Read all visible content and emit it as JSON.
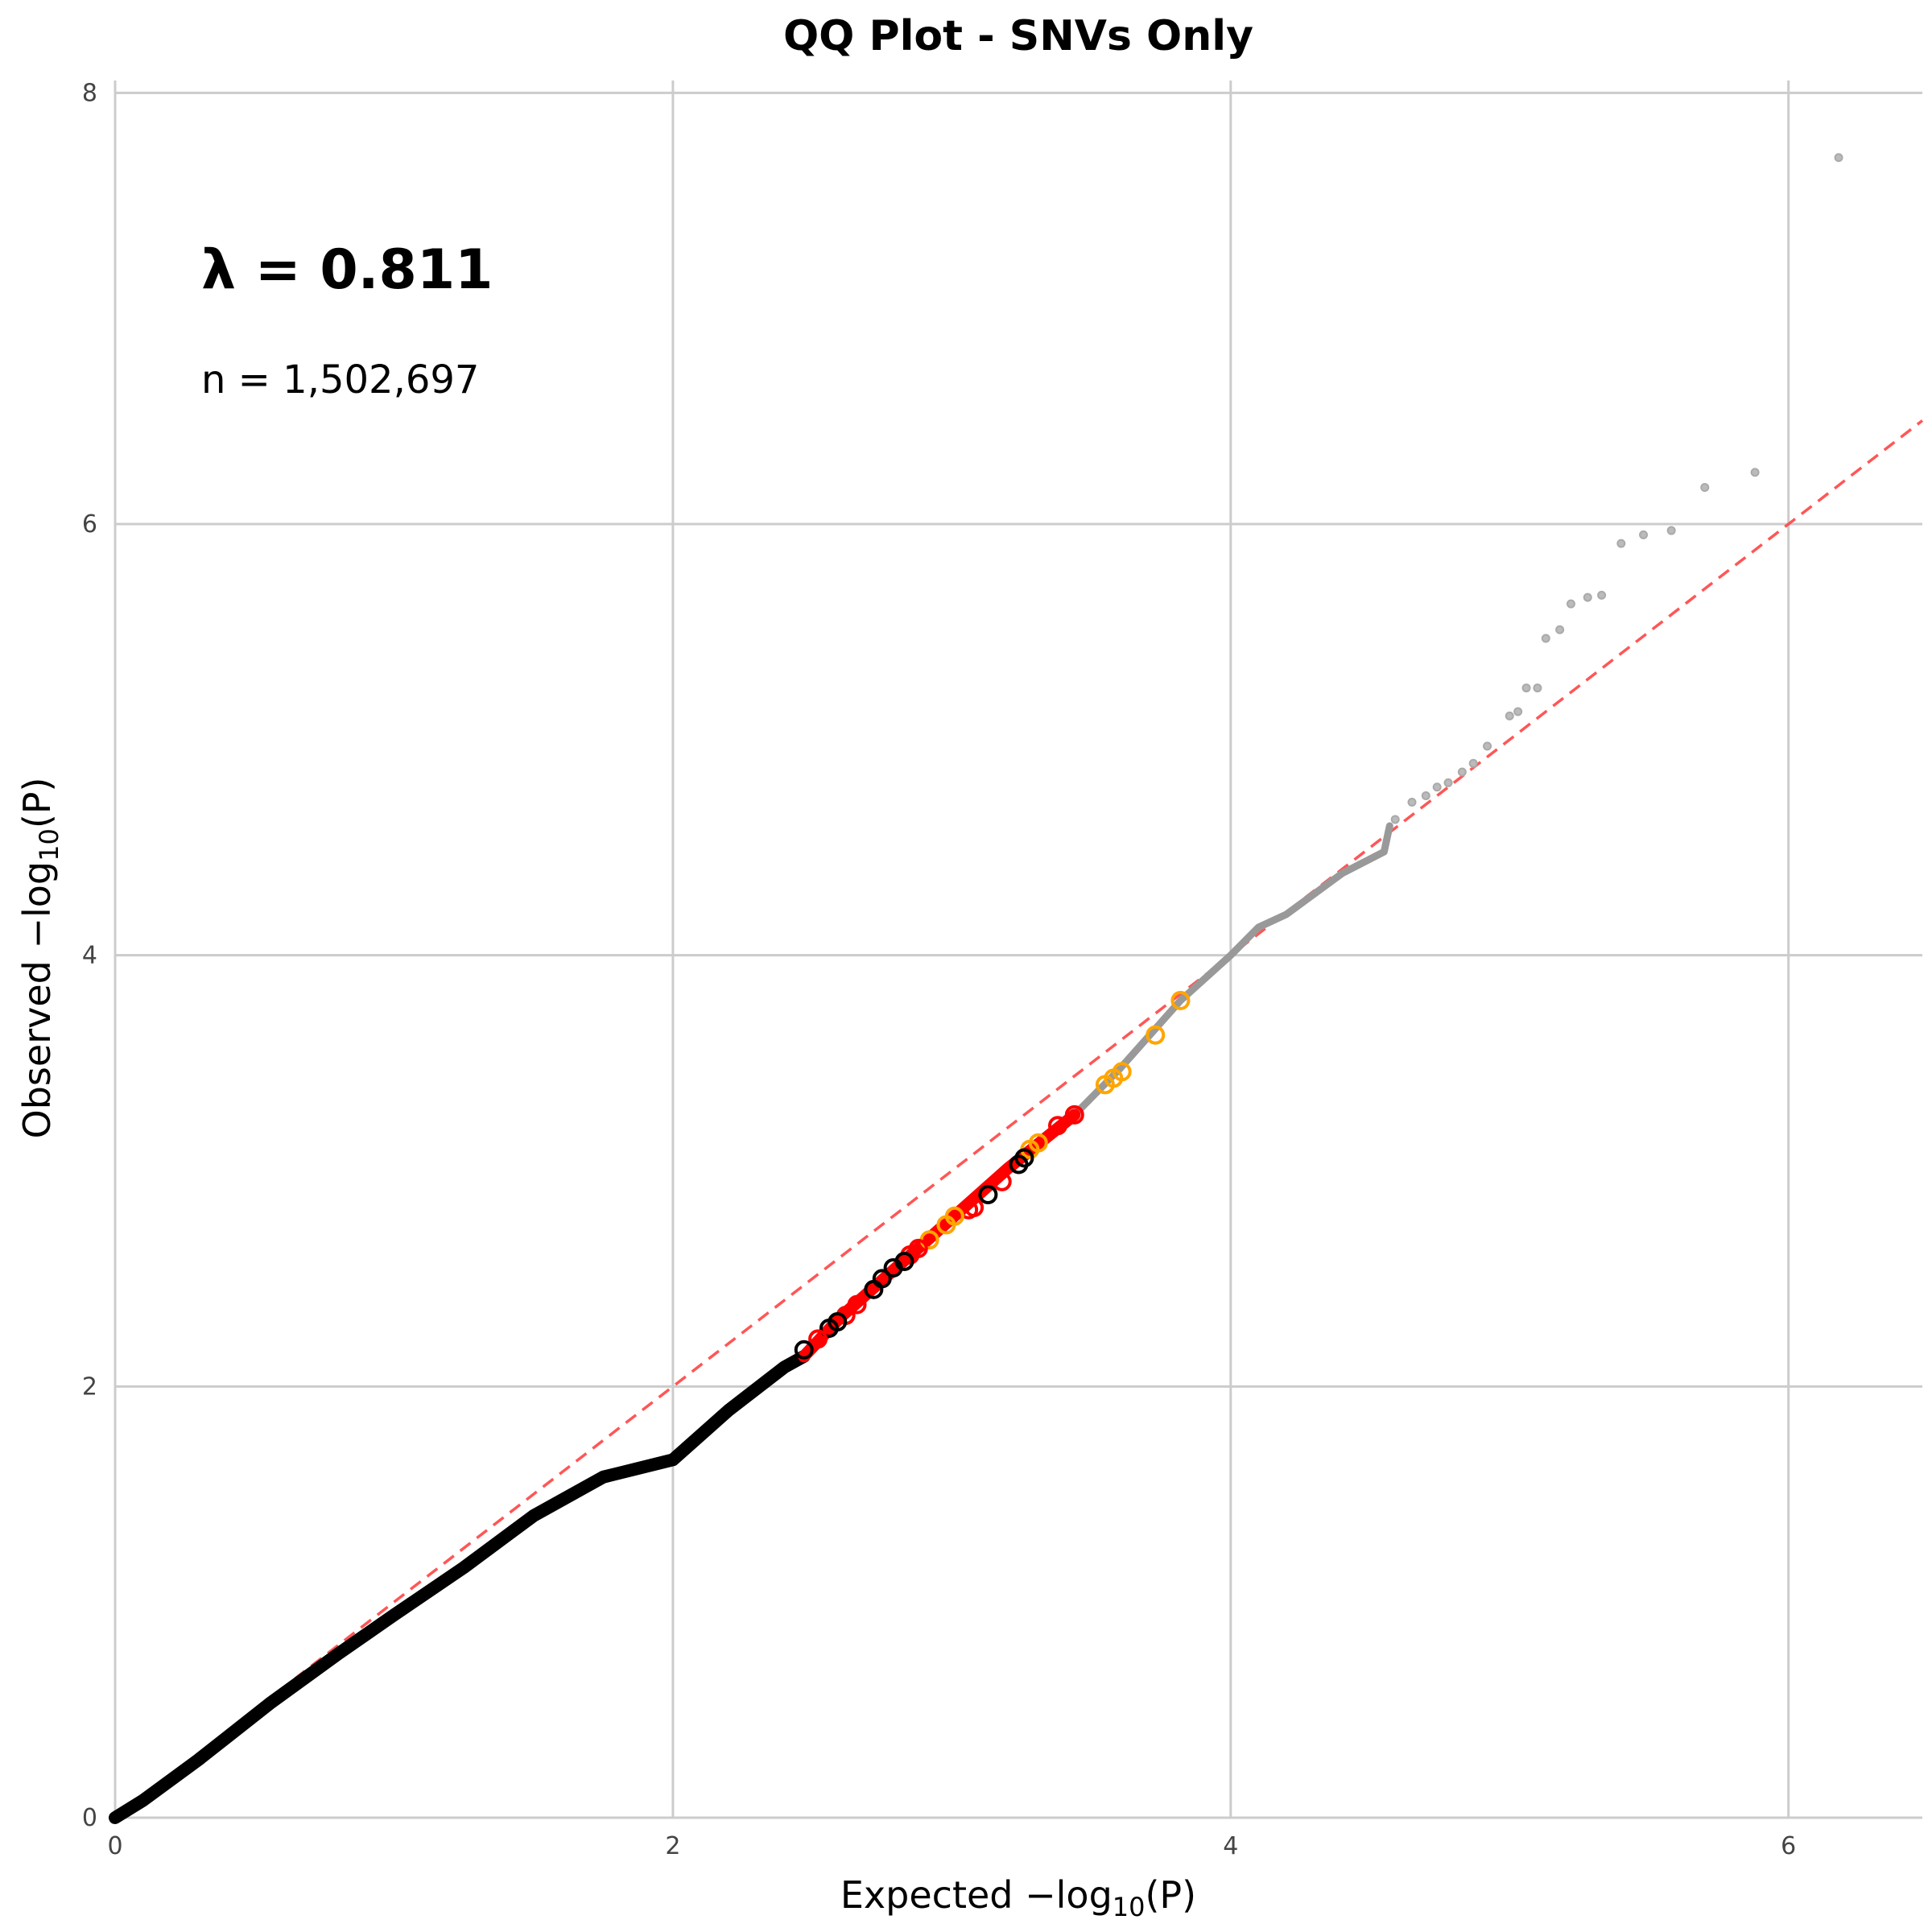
{
  "chart_data": {
    "type": "scatter",
    "title": "QQ Plot - SNVs Only",
    "xlabel": {
      "prefix": "Expected −log",
      "sub": "10",
      "suffix": "(P)"
    },
    "ylabel": {
      "prefix": "Observed −log",
      "sub": "10",
      "suffix": "(P)"
    },
    "xlim": [
      0,
      6.48
    ],
    "ylim": [
      0,
      8.02
    ],
    "xticks": [
      "0",
      "2",
      "4",
      "6"
    ],
    "yticks": [
      "0",
      "2",
      "4",
      "6",
      "8"
    ],
    "grid": true,
    "annotations": {
      "lambda": "λ = 0.811",
      "n": "n = 1,502,697"
    },
    "reference_line": {
      "type": "y=x",
      "color": "#ff4444",
      "style": "dashed"
    },
    "colors": {
      "bulk": "#000000",
      "tail": "#999999",
      "red": "#ff0000",
      "orange": "#ffa500",
      "black": "#000000"
    },
    "bulk_curve": [
      [
        0,
        0
      ],
      [
        0.1,
        0.08
      ],
      [
        0.3,
        0.27
      ],
      [
        0.56,
        0.535
      ],
      [
        0.8,
        0.76
      ],
      [
        1.0,
        0.94
      ],
      [
        1.25,
        1.16
      ],
      [
        1.5,
        1.4
      ],
      [
        1.75,
        1.58
      ],
      [
        2.0,
        1.66
      ],
      [
        2.2,
        1.89
      ],
      [
        2.4,
        2.09
      ],
      [
        2.47,
        2.14
      ]
    ],
    "highlight_curve": [
      [
        2.47,
        2.14
      ],
      [
        2.6,
        2.32
      ],
      [
        2.8,
        2.55
      ],
      [
        3.0,
        2.78
      ],
      [
        3.2,
        3.01
      ],
      [
        3.44,
        3.26
      ]
    ],
    "tail_curve": [
      [
        3.44,
        3.26
      ],
      [
        3.6,
        3.47
      ],
      [
        3.82,
        3.79
      ],
      [
        4.0,
        4.0
      ],
      [
        4.1,
        4.13
      ],
      [
        4.2,
        4.19
      ],
      [
        4.4,
        4.38
      ],
      [
        4.55,
        4.48
      ],
      [
        4.57,
        4.6
      ]
    ],
    "tail_points": [
      [
        4.59,
        4.63
      ],
      [
        4.65,
        4.71
      ],
      [
        4.7,
        4.74
      ],
      [
        4.74,
        4.78
      ],
      [
        4.78,
        4.8
      ],
      [
        4.83,
        4.85
      ],
      [
        4.87,
        4.89
      ],
      [
        4.92,
        4.97
      ],
      [
        5.0,
        5.11
      ],
      [
        5.03,
        5.13
      ],
      [
        5.06,
        5.24
      ],
      [
        5.1,
        5.24
      ],
      [
        5.13,
        5.47
      ],
      [
        5.18,
        5.51
      ],
      [
        5.22,
        5.63
      ],
      [
        5.28,
        5.66
      ],
      [
        5.33,
        5.67
      ],
      [
        5.4,
        5.91
      ],
      [
        5.48,
        5.95
      ],
      [
        5.58,
        5.97
      ],
      [
        5.7,
        6.17
      ],
      [
        5.88,
        6.24
      ],
      [
        6.18,
        7.7
      ]
    ],
    "highlighted_points": [
      {
        "x": 3.82,
        "y": 3.79,
        "color": "orange"
      },
      {
        "x": 3.73,
        "y": 3.63,
        "color": "orange"
      },
      {
        "x": 3.61,
        "y": 3.46,
        "color": "orange"
      },
      {
        "x": 3.58,
        "y": 3.43,
        "color": "orange"
      },
      {
        "x": 3.55,
        "y": 3.4,
        "color": "orange"
      },
      {
        "x": 3.44,
        "y": 3.26,
        "color": "red"
      },
      {
        "x": 3.38,
        "y": 3.21,
        "color": "red"
      },
      {
        "x": 3.31,
        "y": 3.13,
        "color": "orange"
      },
      {
        "x": 3.28,
        "y": 3.1,
        "color": "orange"
      },
      {
        "x": 3.26,
        "y": 3.06,
        "color": "black"
      },
      {
        "x": 3.24,
        "y": 3.03,
        "color": "black"
      },
      {
        "x": 3.18,
        "y": 2.95,
        "color": "red"
      },
      {
        "x": 3.13,
        "y": 2.89,
        "color": "black"
      },
      {
        "x": 3.08,
        "y": 2.83,
        "color": "red"
      },
      {
        "x": 3.06,
        "y": 2.82,
        "color": "red"
      },
      {
        "x": 3.01,
        "y": 2.79,
        "color": "orange"
      },
      {
        "x": 2.98,
        "y": 2.75,
        "color": "orange"
      },
      {
        "x": 2.92,
        "y": 2.68,
        "color": "orange"
      },
      {
        "x": 2.88,
        "y": 2.64,
        "color": "red"
      },
      {
        "x": 2.85,
        "y": 2.61,
        "color": "red"
      },
      {
        "x": 2.83,
        "y": 2.58,
        "color": "black"
      },
      {
        "x": 2.79,
        "y": 2.55,
        "color": "black"
      },
      {
        "x": 2.75,
        "y": 2.5,
        "color": "black"
      },
      {
        "x": 2.72,
        "y": 2.45,
        "color": "black"
      },
      {
        "x": 2.66,
        "y": 2.38,
        "color": "red"
      },
      {
        "x": 2.62,
        "y": 2.33,
        "color": "red"
      },
      {
        "x": 2.59,
        "y": 2.3,
        "color": "black"
      },
      {
        "x": 2.56,
        "y": 2.27,
        "color": "black"
      },
      {
        "x": 2.52,
        "y": 2.22,
        "color": "red"
      },
      {
        "x": 2.47,
        "y": 2.17,
        "color": "black"
      }
    ]
  }
}
